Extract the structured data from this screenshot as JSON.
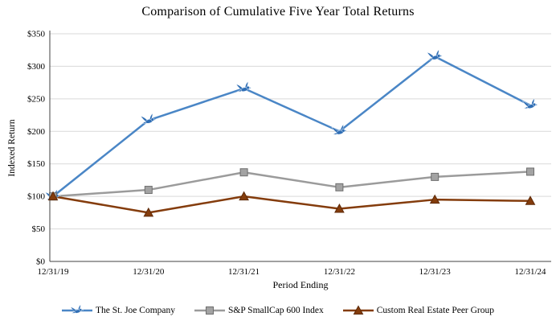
{
  "chart_data": {
    "type": "line",
    "title": "Comparison of Cumulative Five Year Total Returns",
    "xlabel": "Period Ending",
    "ylabel": "Indexed Return",
    "categories": [
      "12/31/19",
      "12/31/20",
      "12/31/21",
      "12/31/22",
      "12/31/23",
      "12/31/24"
    ],
    "series": [
      {
        "name": "The St. Joe Company",
        "marker": "bird",
        "color": "#4a86c6",
        "marker_color": "#2f6eb5",
        "values": [
          100,
          217,
          266,
          200,
          315,
          240
        ]
      },
      {
        "name": "S&P SmallCap 600 Index",
        "marker": "square",
        "color": "#9b9b9b",
        "marker_color": "#a3a3a3",
        "values": [
          100,
          110,
          137,
          114,
          130,
          138
        ]
      },
      {
        "name": "Custom Real Estate Peer Group",
        "marker": "triangle",
        "color": "#843c0c",
        "marker_color": "#843c0c",
        "values": [
          100,
          75,
          100,
          81,
          95,
          93
        ]
      }
    ],
    "ylim": [
      0,
      350
    ],
    "ytick_values": [
      0,
      50,
      100,
      150,
      200,
      250,
      300,
      350
    ],
    "ytick_labels": [
      "$0",
      "$50",
      "$100",
      "$150",
      "$200",
      "$250",
      "$300",
      "$350"
    ],
    "grid": "horizontal",
    "legend_position": "bottom"
  }
}
